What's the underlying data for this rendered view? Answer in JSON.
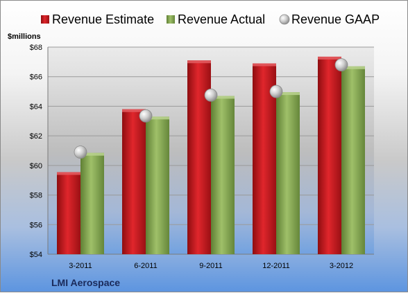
{
  "chart_data": {
    "type": "bar",
    "title": "",
    "unit_label": "$millions",
    "company": "LMI Aerospace",
    "categories": [
      "3-2011",
      "6-2011",
      "9-2011",
      "12-2011",
      "3-2012"
    ],
    "y_ticks": [
      "$54",
      "$56",
      "$58",
      "$60",
      "$62",
      "$64",
      "$66",
      "$68"
    ],
    "ylim": [
      54,
      68
    ],
    "grid": true,
    "legend_position": "top",
    "series": [
      {
        "name": "Revenue Estimate",
        "type": "bar",
        "color": "#c0151b",
        "values": [
          59.55,
          63.8,
          67.1,
          66.9,
          67.35
        ]
      },
      {
        "name": "Revenue Actual",
        "type": "bar",
        "color": "#8cad5a",
        "values": [
          60.85,
          63.3,
          64.7,
          64.95,
          66.7
        ]
      },
      {
        "name": "Revenue GAAP",
        "type": "marker",
        "color": "#c8c8c8",
        "values": [
          60.9,
          63.35,
          64.75,
          65.0,
          66.8
        ]
      }
    ]
  }
}
